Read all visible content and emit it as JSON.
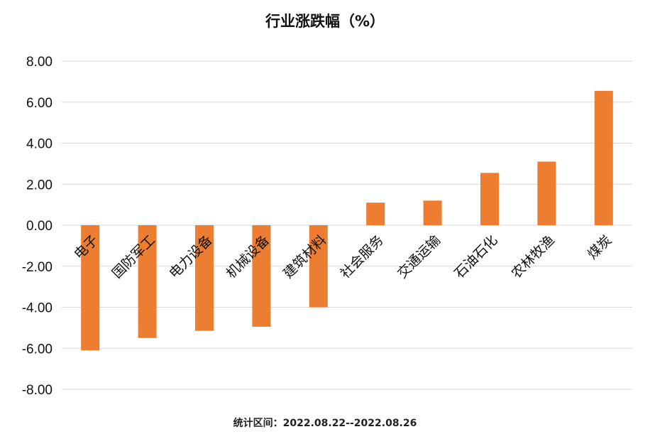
{
  "chart_data": {
    "type": "bar",
    "title": "行业涨跌幅（%）",
    "categories": [
      "电子",
      "国防军工",
      "电力设备",
      "机械设备",
      "建筑材料",
      "社会服务",
      "交通运输",
      "石油石化",
      "农林牧渔",
      "煤炭"
    ],
    "values": [
      -6.1,
      -5.5,
      -5.15,
      -4.95,
      -4.0,
      1.1,
      1.2,
      2.55,
      3.1,
      6.55
    ],
    "ylim": [
      -8,
      8
    ],
    "yticks": [
      "8.00",
      "6.00",
      "4.00",
      "2.00",
      "0.00",
      "-2.00",
      "-4.00",
      "-6.00",
      "-8.00"
    ],
    "grid": true,
    "bar_color": "#ed7d31",
    "footnote": "统计区间：2022.08.22--2022.08.26"
  }
}
